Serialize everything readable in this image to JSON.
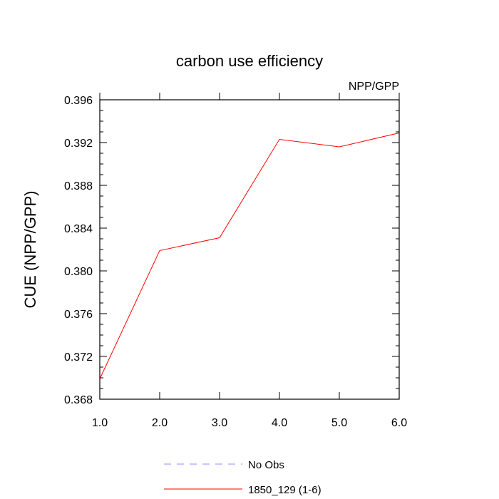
{
  "chart_data": {
    "type": "line",
    "title": "carbon use efficiency",
    "subtitle": "NPP/GPP",
    "xlabel": "",
    "ylabel": "CUE  (NPP/GPP)",
    "xlim": [
      1.0,
      6.0
    ],
    "ylim": [
      0.368,
      0.396
    ],
    "x_ticks": [
      "1.0",
      "2.0",
      "3.0",
      "4.0",
      "5.0",
      "6.0"
    ],
    "y_ticks": [
      "0.368",
      "0.372",
      "0.376",
      "0.380",
      "0.384",
      "0.388",
      "0.392",
      "0.396"
    ],
    "grid": false,
    "legend_position": "bottom",
    "x": [
      1,
      2,
      3,
      4,
      5,
      6
    ],
    "series": [
      {
        "name": "1850_129 (1-6)",
        "color": "#ff0000",
        "style": "solid",
        "values": [
          0.3699,
          0.3819,
          0.3831,
          0.3923,
          0.3916,
          0.3929
        ]
      }
    ],
    "legend": [
      {
        "label": "No Obs",
        "color": "#8c8cff",
        "style": "dashed"
      },
      {
        "label": "1850_129 (1-6)",
        "color": "#ff0000",
        "style": "solid"
      }
    ]
  }
}
